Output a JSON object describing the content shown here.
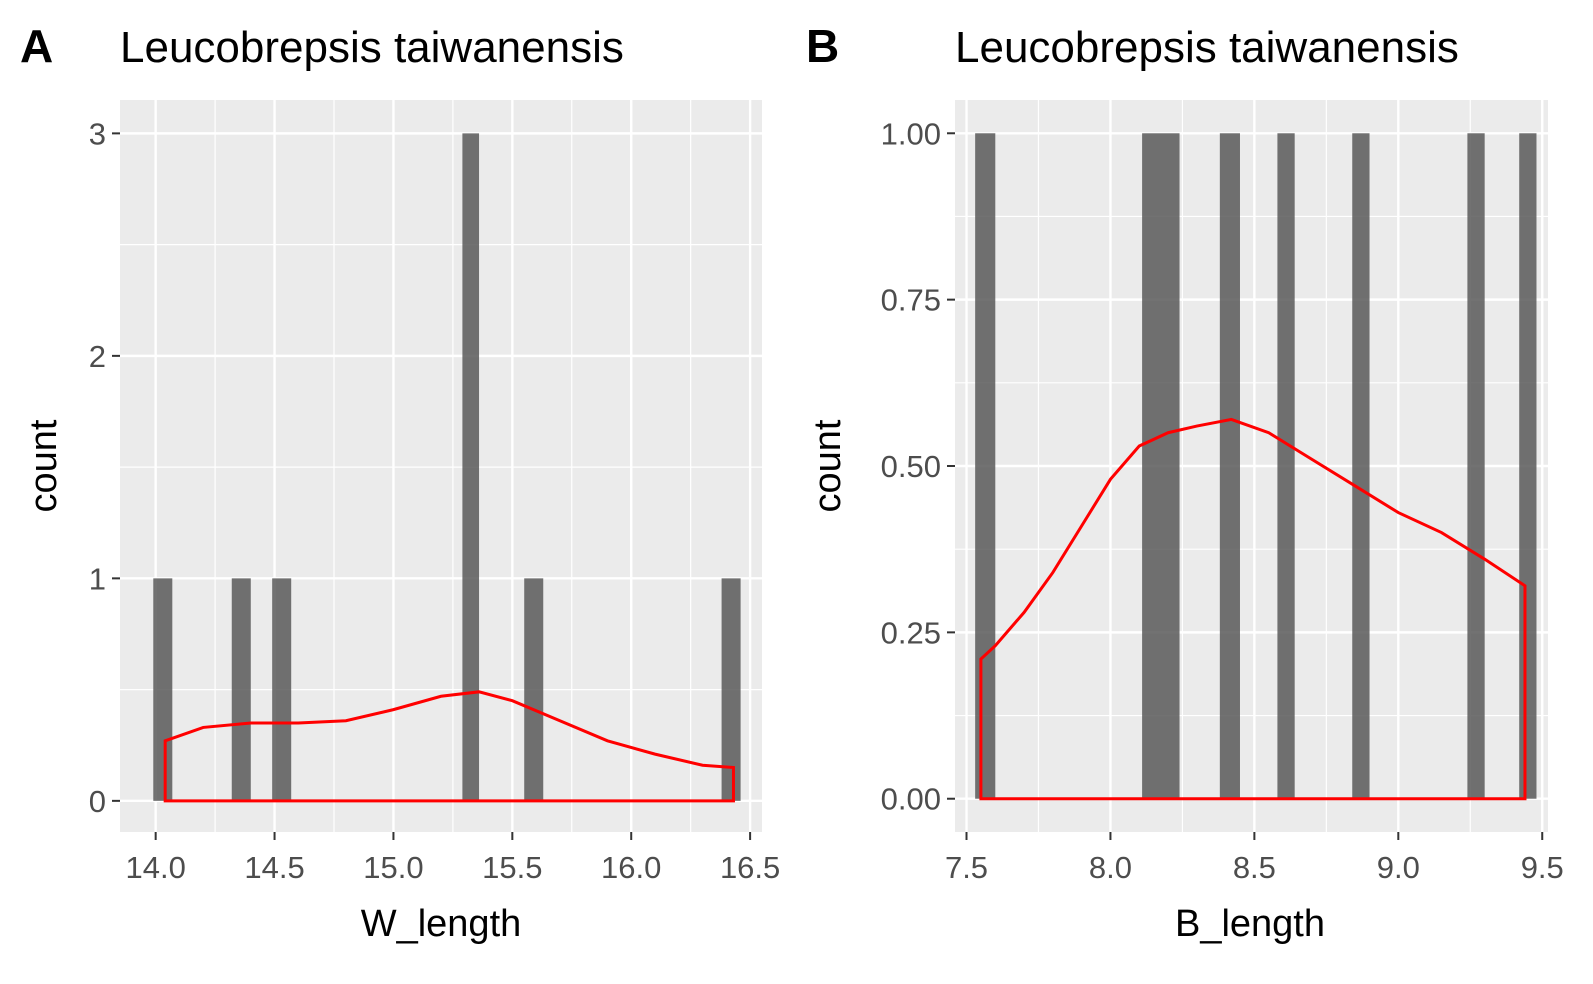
{
  "chart_data": [
    {
      "type": "bar",
      "panel_label": "A",
      "title": "Leucobrepsis taiwanensis",
      "xlabel": "W_length",
      "ylabel": "count",
      "xlim": [
        13.85,
        16.55
      ],
      "ylim": [
        -0.14,
        3.15
      ],
      "x_ticks": [
        14.0,
        14.5,
        15.0,
        15.5,
        16.0,
        16.5
      ],
      "x_tick_labels": [
        "14.0",
        "14.5",
        "15.0",
        "15.5",
        "16.0",
        "16.5"
      ],
      "y_ticks": [
        0,
        1,
        2,
        3
      ],
      "y_tick_labels": [
        "0",
        "1",
        "2",
        "3"
      ],
      "bins": [
        {
          "x0": 13.99,
          "x1": 14.07,
          "count": 1
        },
        {
          "x0": 14.32,
          "x1": 14.4,
          "count": 1
        },
        {
          "x0": 14.49,
          "x1": 14.57,
          "count": 1
        },
        {
          "x0": 15.29,
          "x1": 15.36,
          "count": 3
        },
        {
          "x0": 15.55,
          "x1": 15.63,
          "count": 1
        },
        {
          "x0": 16.38,
          "x1": 16.46,
          "count": 1
        }
      ],
      "density": {
        "color": "#ff0000",
        "x": [
          14.04,
          14.2,
          14.4,
          14.6,
          14.8,
          15.0,
          15.2,
          15.36,
          15.5,
          15.7,
          15.9,
          16.1,
          16.3,
          16.43
        ],
        "y": [
          0.27,
          0.33,
          0.35,
          0.35,
          0.36,
          0.41,
          0.47,
          0.49,
          0.45,
          0.36,
          0.27,
          0.21,
          0.16,
          0.15
        ]
      },
      "grid": true,
      "bar_color": "#595959",
      "panel_bg": "#ebebeb"
    },
    {
      "type": "bar",
      "panel_label": "B",
      "title": "Leucobrepsis taiwanensis",
      "xlabel": "B_length",
      "ylabel": "count",
      "xlim": [
        7.46,
        9.52
      ],
      "ylim": [
        -0.05,
        1.05
      ],
      "x_ticks": [
        7.5,
        8.0,
        8.5,
        9.0,
        9.5
      ],
      "x_tick_labels": [
        "7.5",
        "8.0",
        "8.5",
        "9.0",
        "9.5"
      ],
      "y_ticks": [
        0.0,
        0.25,
        0.5,
        0.75,
        1.0
      ],
      "y_tick_labels": [
        "0.00",
        "0.25",
        "0.50",
        "0.75",
        "1.00"
      ],
      "bins": [
        {
          "x0": 7.53,
          "x1": 7.6,
          "count": 1
        },
        {
          "x0": 8.11,
          "x1": 8.24,
          "count": 1
        },
        {
          "x0": 8.38,
          "x1": 8.45,
          "count": 1
        },
        {
          "x0": 8.58,
          "x1": 8.64,
          "count": 1
        },
        {
          "x0": 8.84,
          "x1": 8.9,
          "count": 1
        },
        {
          "x0": 9.24,
          "x1": 9.3,
          "count": 1
        },
        {
          "x0": 9.42,
          "x1": 9.48,
          "count": 1
        }
      ],
      "density": {
        "color": "#ff0000",
        "x": [
          7.55,
          7.6,
          7.7,
          7.8,
          7.9,
          8.0,
          8.1,
          8.2,
          8.3,
          8.42,
          8.55,
          8.7,
          8.85,
          9.0,
          9.15,
          9.3,
          9.44
        ],
        "y": [
          0.21,
          0.23,
          0.28,
          0.34,
          0.41,
          0.48,
          0.53,
          0.55,
          0.56,
          0.57,
          0.55,
          0.51,
          0.47,
          0.43,
          0.4,
          0.36,
          0.32
        ]
      },
      "grid": true,
      "bar_color": "#595959",
      "panel_bg": "#ebebeb"
    }
  ]
}
